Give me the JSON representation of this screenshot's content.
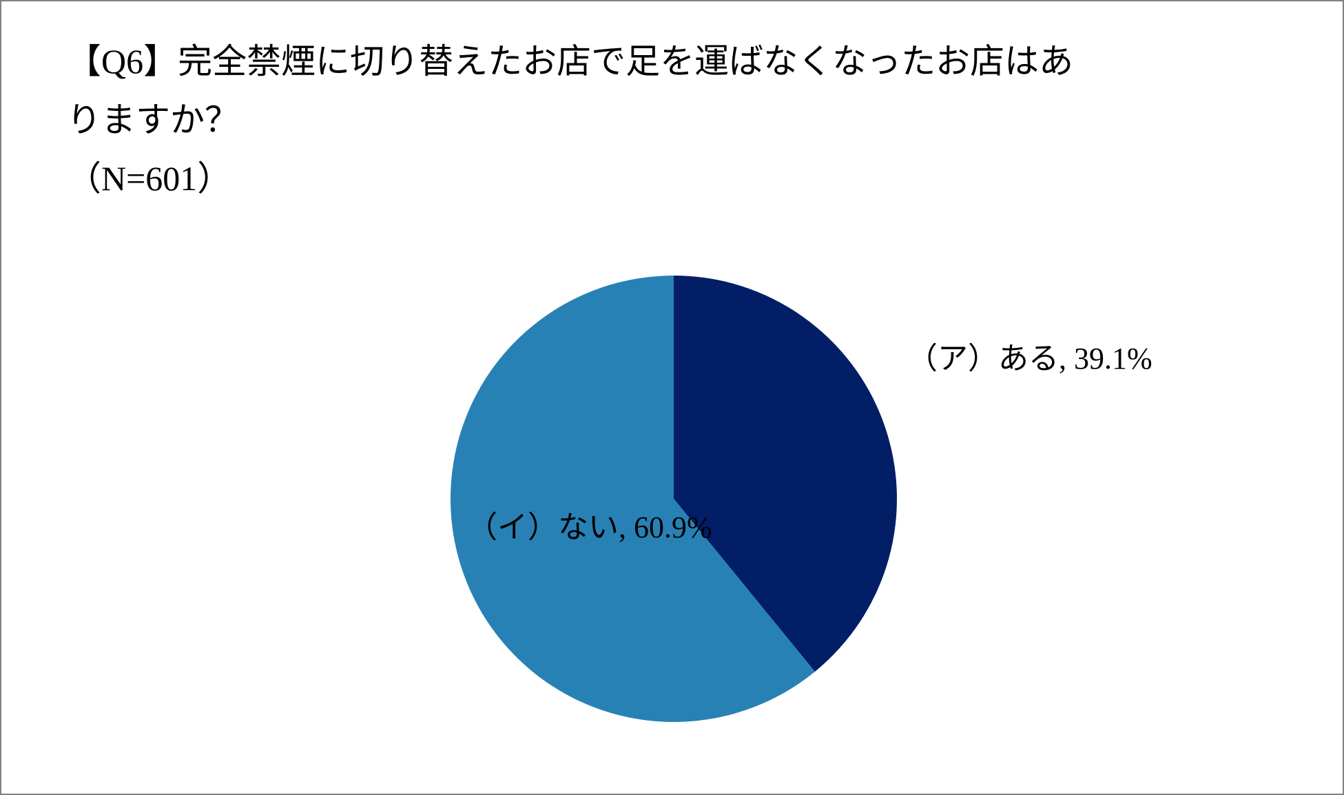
{
  "page": {
    "background_color": "#FFFFFF",
    "border_color": "#808080"
  },
  "title": {
    "line1": "【Q6】完全禁煙に切り替えたお店で足を運ばなくなったお店はあ",
    "line2": "りますか？",
    "sample_size": "（N=601）"
  },
  "chart_data": {
    "type": "pie",
    "title": "【Q6】完全禁煙に切り替えたお店で足を運ばなくなったお店はありますか？",
    "n": 601,
    "categories": [
      "（ア）ある",
      "（イ）ない"
    ],
    "values": [
      39.1,
      60.9
    ],
    "unit": "%",
    "colors": [
      "#021E67",
      "#2881B5"
    ],
    "start_angle_deg": 0,
    "direction": "clockwise",
    "legend": "none",
    "data_labels": [
      "（ア）ある, 39.1%",
      "（イ）ない, 60.9%"
    ],
    "label_color": "#000000"
  }
}
